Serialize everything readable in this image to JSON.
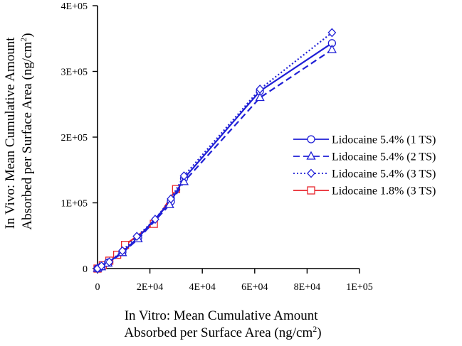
{
  "chart_data": {
    "type": "line",
    "title": "",
    "xlabel": [
      "In Vitro: Mean Cumulative Amount",
      "Absorbed per Surface Area (ng/cm",
      "2",
      ")"
    ],
    "ylabel": [
      "In Vivo: Mean Cumulative Amount",
      "Absorbed per Surface Area (ng/cm",
      "2",
      ")"
    ],
    "xlim": [
      0,
      100000
    ],
    "ylim": [
      0,
      400000
    ],
    "xticks": [
      {
        "value": 0,
        "label": "0"
      },
      {
        "value": 20000,
        "label": "2E+04"
      },
      {
        "value": 40000,
        "label": "4E+04"
      },
      {
        "value": 60000,
        "label": "6E+04"
      },
      {
        "value": 80000,
        "label": "8E+04"
      },
      {
        "value": 100000,
        "label": "1E+05"
      }
    ],
    "yticks": [
      {
        "value": 0,
        "label": "0"
      },
      {
        "value": 100000,
        "label": "1E+05"
      },
      {
        "value": 200000,
        "label": "2E+05"
      },
      {
        "value": 300000,
        "label": "3E+05"
      },
      {
        "value": 400000,
        "label": "4E+05"
      }
    ],
    "grid": false,
    "legend_position": "right",
    "series": [
      {
        "name": "Lidocaine 5.4% (1 TS)",
        "color": "#1f1fd6",
        "dash": "solid",
        "marker": "circle",
        "x": [
          0,
          1500,
          4000,
          9500,
          15500,
          28000,
          33000,
          62000,
          89500
        ],
        "y": [
          0,
          3000,
          9000,
          25000,
          47000,
          102000,
          137000,
          270000,
          343000
        ]
      },
      {
        "name": "Lidocaine 5.4% (2 TS)",
        "color": "#1f1fd6",
        "dash": "dashed",
        "marker": "triangle",
        "x": [
          0,
          1500,
          4000,
          9500,
          15500,
          27500,
          33000,
          62000,
          89500
        ],
        "y": [
          0,
          2500,
          8000,
          24000,
          45000,
          97000,
          132000,
          260000,
          333000
        ]
      },
      {
        "name": "Lidocaine 5.4% (3 TS)",
        "color": "#1f1fd6",
        "dash": "dotted",
        "marker": "diamond",
        "x": [
          0,
          1500,
          4500,
          9500,
          15000,
          22000,
          28000,
          33000,
          62000,
          89500
        ],
        "y": [
          0,
          4000,
          10000,
          27000,
          49000,
          75000,
          106000,
          141000,
          273000,
          359000
        ]
      },
      {
        "name": "Lidocaine 1.8% (3 TS)",
        "color": "#e8262d",
        "dash": "solid",
        "marker": "square",
        "x": [
          0,
          2000,
          4500,
          7500,
          10500,
          21500,
          30000
        ],
        "y": [
          0,
          5000,
          12000,
          21000,
          36000,
          68000,
          121000
        ]
      }
    ]
  }
}
